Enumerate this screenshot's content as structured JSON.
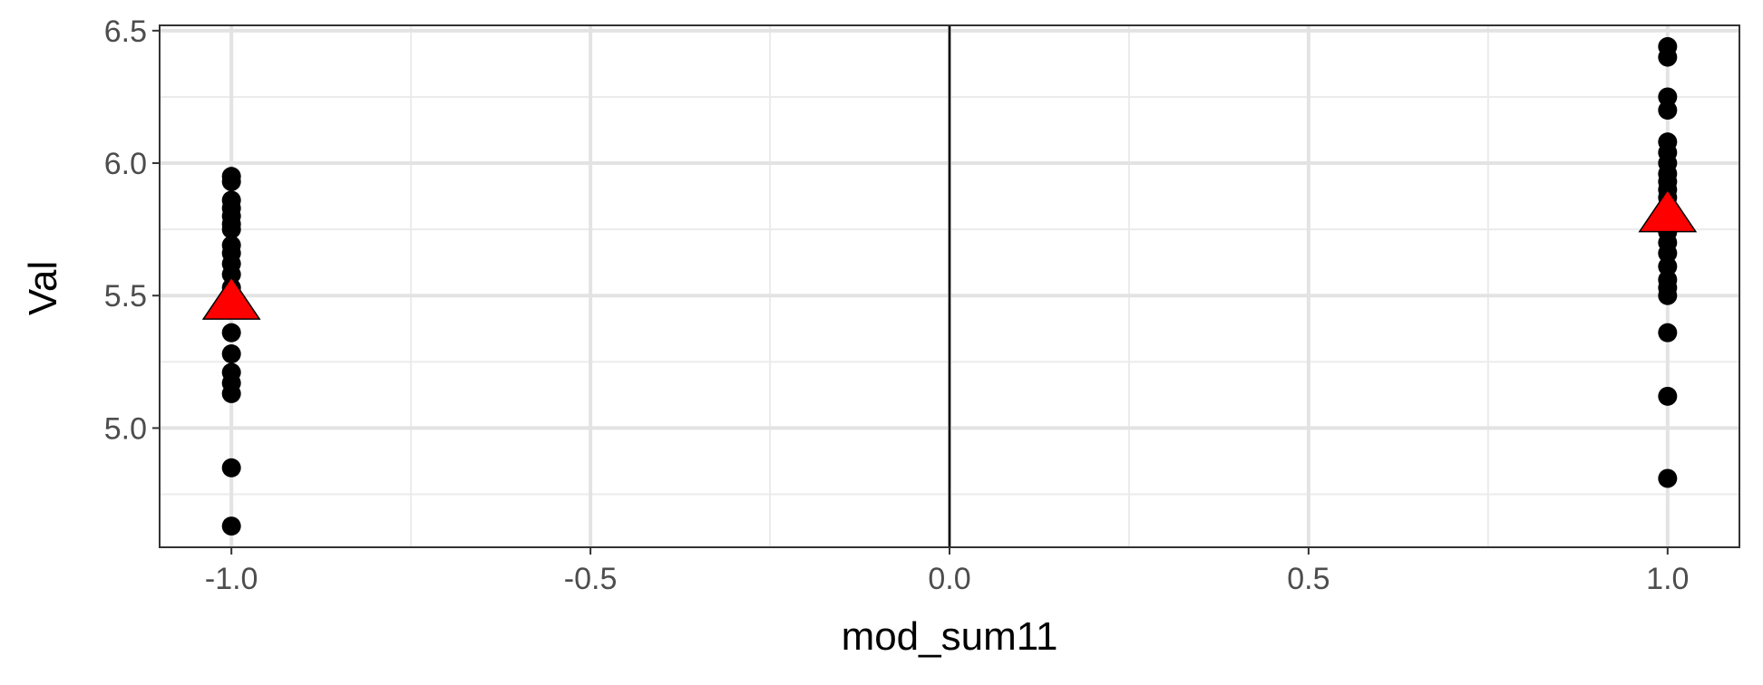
{
  "chart_data": {
    "type": "scatter",
    "title": "",
    "xlabel": "mod_sum11",
    "ylabel": "Val",
    "xlim": [
      -1.1,
      1.1
    ],
    "ylim": [
      4.55,
      6.52
    ],
    "x_ticks": [
      -1.0,
      -0.5,
      0.0,
      0.5,
      1.0
    ],
    "x_tick_labels": [
      "-1.0",
      "-0.5",
      "0.0",
      "0.5",
      "1.0"
    ],
    "y_ticks": [
      5.0,
      5.5,
      6.0,
      6.5
    ],
    "y_tick_labels": [
      "5.0",
      "5.5",
      "6.0",
      "6.5"
    ],
    "grid": true,
    "reference_line_x": 0,
    "series": [
      {
        "marker": "circle",
        "color": "#000000",
        "points": [
          {
            "x": -1,
            "y": 5.95
          },
          {
            "x": -1,
            "y": 5.93
          },
          {
            "x": -1,
            "y": 5.86
          },
          {
            "x": -1,
            "y": 5.83
          },
          {
            "x": -1,
            "y": 5.8
          },
          {
            "x": -1,
            "y": 5.77
          },
          {
            "x": -1,
            "y": 5.75
          },
          {
            "x": -1,
            "y": 5.69
          },
          {
            "x": -1,
            "y": 5.66
          },
          {
            "x": -1,
            "y": 5.62
          },
          {
            "x": -1,
            "y": 5.58
          },
          {
            "x": -1,
            "y": 5.53
          },
          {
            "x": -1,
            "y": 5.36
          },
          {
            "x": -1,
            "y": 5.28
          },
          {
            "x": -1,
            "y": 5.21
          },
          {
            "x": -1,
            "y": 5.17
          },
          {
            "x": -1,
            "y": 5.13
          },
          {
            "x": -1,
            "y": 4.85
          },
          {
            "x": -1,
            "y": 4.63
          },
          {
            "x": 1,
            "y": 6.44
          },
          {
            "x": 1,
            "y": 6.4
          },
          {
            "x": 1,
            "y": 6.25
          },
          {
            "x": 1,
            "y": 6.2
          },
          {
            "x": 1,
            "y": 6.08
          },
          {
            "x": 1,
            "y": 6.04
          },
          {
            "x": 1,
            "y": 6.0
          },
          {
            "x": 1,
            "y": 5.96
          },
          {
            "x": 1,
            "y": 5.93
          },
          {
            "x": 1,
            "y": 5.9
          },
          {
            "x": 1,
            "y": 5.87
          },
          {
            "x": 1,
            "y": 5.83
          },
          {
            "x": 1,
            "y": 5.8
          },
          {
            "x": 1,
            "y": 5.77
          },
          {
            "x": 1,
            "y": 5.74
          },
          {
            "x": 1,
            "y": 5.7
          },
          {
            "x": 1,
            "y": 5.66
          },
          {
            "x": 1,
            "y": 5.61
          },
          {
            "x": 1,
            "y": 5.56
          },
          {
            "x": 1,
            "y": 5.53
          },
          {
            "x": 1,
            "y": 5.5
          },
          {
            "x": 1,
            "y": 5.36
          },
          {
            "x": 1,
            "y": 5.12
          },
          {
            "x": 1,
            "y": 4.81
          }
        ]
      },
      {
        "marker": "triangle",
        "color": "#ff0000",
        "points": [
          {
            "x": -1,
            "y": 5.49
          },
          {
            "x": 1,
            "y": 5.82
          }
        ]
      }
    ]
  }
}
